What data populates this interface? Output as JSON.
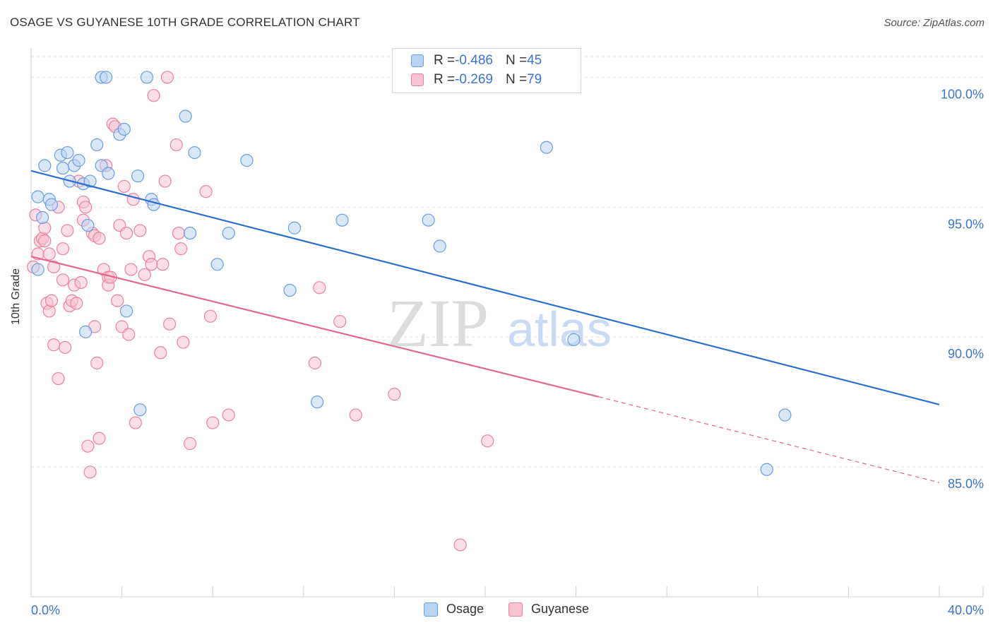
{
  "header": {
    "title": "OSAGE VS GUYANESE 10TH GRADE CORRELATION CHART",
    "source": "Source: ZipAtlas.com"
  },
  "watermark": {
    "zip": "ZIP",
    "atlas": "atlas"
  },
  "legend": {
    "rows": [
      {
        "r_label": "R = ",
        "r_value": "-0.486",
        "n_label": "N = ",
        "n_value": "45"
      },
      {
        "r_label": "R = ",
        "r_value": "-0.269",
        "n_label": "N = ",
        "n_value": "79"
      }
    ]
  },
  "colors": {
    "osage_fill": "#b9d3f3",
    "osage_stroke": "#6a9ee0",
    "osage_line": "#2f6fcc",
    "guyanese_fill": "#f8c2d3",
    "guyanese_stroke": "#e8849f",
    "guyanese_line": "#e06890",
    "axis_text": "#3a74d0",
    "grid": "#e3e3e3"
  },
  "chart_data": {
    "type": "scatter",
    "title": "OSAGE VS GUYANESE 10TH GRADE CORRELATION CHART",
    "xlabel": "",
    "ylabel": "10th Grade",
    "xlim": [
      0,
      40
    ],
    "ylim": [
      80.0,
      100.8
    ],
    "x_tick_labels": [
      "0.0%",
      "40.0%"
    ],
    "y_ticks": [
      85,
      90,
      95,
      100
    ],
    "y_tick_labels": [
      "85.0%",
      "90.0%",
      "95.0%",
      "100.0%"
    ],
    "grid": true,
    "legend_position": "top-center",
    "series": [
      {
        "name": "Osage",
        "R": -0.486,
        "N": 45,
        "trend": {
          "x_start": 0,
          "y_start": 96.4,
          "x_end": 40,
          "y_end": 87.4
        },
        "points": [
          [
            0.3,
            92.6
          ],
          [
            0.3,
            95.4
          ],
          [
            0.5,
            94.6
          ],
          [
            0.6,
            96.6
          ],
          [
            0.8,
            95.3
          ],
          [
            0.9,
            95.1
          ],
          [
            1.3,
            97.0
          ],
          [
            1.4,
            96.5
          ],
          [
            1.6,
            97.1
          ],
          [
            1.7,
            96.0
          ],
          [
            1.9,
            96.6
          ],
          [
            2.1,
            96.8
          ],
          [
            2.3,
            95.9
          ],
          [
            2.4,
            90.2
          ],
          [
            2.5,
            94.3
          ],
          [
            2.6,
            96.0
          ],
          [
            2.9,
            97.4
          ],
          [
            3.1,
            96.6
          ],
          [
            3.1,
            100.0
          ],
          [
            3.3,
            100.0
          ],
          [
            3.4,
            96.3
          ],
          [
            3.9,
            97.8
          ],
          [
            4.1,
            98.0
          ],
          [
            4.2,
            91.0
          ],
          [
            4.7,
            96.2
          ],
          [
            4.8,
            87.2
          ],
          [
            5.1,
            100.0
          ],
          [
            5.3,
            95.3
          ],
          [
            5.4,
            95.1
          ],
          [
            6.8,
            98.5
          ],
          [
            7.0,
            94.0
          ],
          [
            7.2,
            97.1
          ],
          [
            8.2,
            92.8
          ],
          [
            8.7,
            94.0
          ],
          [
            9.5,
            96.8
          ],
          [
            11.4,
            91.8
          ],
          [
            11.6,
            94.2
          ],
          [
            12.6,
            87.5
          ],
          [
            13.7,
            94.5
          ],
          [
            17.5,
            94.5
          ],
          [
            18.0,
            93.5
          ],
          [
            22.7,
            97.3
          ],
          [
            23.9,
            89.9
          ],
          [
            32.4,
            84.9
          ],
          [
            33.2,
            87.0
          ]
        ]
      },
      {
        "name": "Guyanese",
        "R": -0.269,
        "N": 79,
        "trend": {
          "x_start": 0,
          "y_start": 93.1,
          "x_end": 25.0,
          "y_end": 87.7,
          "dash_to_x": 40,
          "dash_to_y": 84.4
        },
        "points": [
          [
            0.1,
            92.7
          ],
          [
            0.2,
            94.7
          ],
          [
            0.3,
            93.2
          ],
          [
            0.4,
            93.7
          ],
          [
            0.5,
            93.8
          ],
          [
            0.6,
            94.2
          ],
          [
            0.6,
            93.7
          ],
          [
            0.7,
            91.3
          ],
          [
            0.8,
            93.2
          ],
          [
            0.8,
            91.0
          ],
          [
            0.9,
            91.4
          ],
          [
            1.0,
            92.7
          ],
          [
            1.0,
            89.7
          ],
          [
            1.2,
            95.0
          ],
          [
            1.2,
            88.4
          ],
          [
            1.4,
            92.2
          ],
          [
            1.4,
            93.4
          ],
          [
            1.5,
            89.6
          ],
          [
            1.6,
            94.1
          ],
          [
            1.7,
            91.2
          ],
          [
            1.8,
            91.4
          ],
          [
            1.9,
            92.0
          ],
          [
            2.0,
            91.3
          ],
          [
            2.1,
            96.0
          ],
          [
            2.2,
            92.1
          ],
          [
            2.3,
            95.2
          ],
          [
            2.3,
            94.5
          ],
          [
            2.4,
            95.0
          ],
          [
            2.5,
            85.8
          ],
          [
            2.6,
            84.8
          ],
          [
            2.7,
            94.0
          ],
          [
            2.8,
            93.9
          ],
          [
            2.8,
            90.4
          ],
          [
            2.9,
            89.0
          ],
          [
            3.0,
            86.1
          ],
          [
            3.0,
            93.8
          ],
          [
            3.2,
            92.6
          ],
          [
            3.3,
            96.6
          ],
          [
            3.4,
            92.3
          ],
          [
            3.4,
            92.0
          ],
          [
            3.5,
            92.3
          ],
          [
            3.6,
            98.2
          ],
          [
            3.7,
            98.1
          ],
          [
            3.8,
            91.4
          ],
          [
            3.9,
            94.3
          ],
          [
            4.0,
            90.4
          ],
          [
            4.1,
            95.8
          ],
          [
            4.2,
            94.0
          ],
          [
            4.3,
            90.1
          ],
          [
            4.4,
            92.6
          ],
          [
            4.5,
            95.3
          ],
          [
            4.6,
            86.7
          ],
          [
            4.8,
            94.1
          ],
          [
            5.0,
            92.4
          ],
          [
            5.2,
            93.1
          ],
          [
            5.3,
            92.8
          ],
          [
            5.4,
            99.3
          ],
          [
            5.7,
            89.4
          ],
          [
            5.8,
            92.8
          ],
          [
            5.9,
            96.0
          ],
          [
            6.0,
            100.0
          ],
          [
            6.1,
            90.5
          ],
          [
            6.4,
            97.4
          ],
          [
            6.5,
            94.0
          ],
          [
            6.6,
            93.4
          ],
          [
            6.7,
            89.8
          ],
          [
            7.0,
            85.9
          ],
          [
            7.7,
            95.6
          ],
          [
            7.9,
            90.8
          ],
          [
            8.0,
            86.7
          ],
          [
            8.7,
            87.0
          ],
          [
            12.5,
            89.0
          ],
          [
            12.7,
            91.9
          ],
          [
            13.6,
            90.6
          ],
          [
            14.3,
            87.0
          ],
          [
            16.0,
            87.8
          ],
          [
            16.5,
            100.0
          ],
          [
            18.9,
            82.0
          ],
          [
            20.1,
            86.0
          ]
        ]
      }
    ]
  },
  "bottom_legend": {
    "series": [
      "Osage",
      "Guyanese"
    ]
  }
}
